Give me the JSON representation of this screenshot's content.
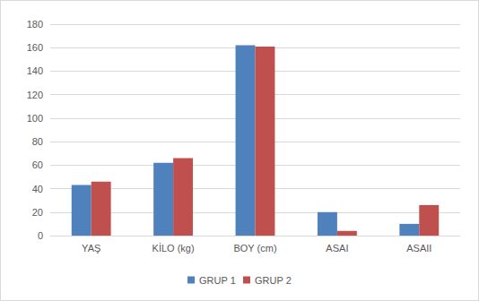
{
  "chart_data": {
    "type": "bar",
    "categories": [
      "YAŞ",
      "KİLO (kg)",
      "BOY (cm)",
      "ASAI",
      "ASAII"
    ],
    "series": [
      {
        "name": "GRUP 1",
        "color": "#4f81bd",
        "values": [
          43,
          62,
          162,
          20,
          10
        ]
      },
      {
        "name": "GRUP 2",
        "color": "#c0504d",
        "values": [
          46,
          66,
          161,
          4,
          26
        ]
      }
    ],
    "ylim": [
      0,
      180
    ],
    "yticks": [
      0,
      20,
      40,
      60,
      80,
      100,
      120,
      140,
      160,
      180
    ],
    "grid": true,
    "legend": "bottom"
  }
}
